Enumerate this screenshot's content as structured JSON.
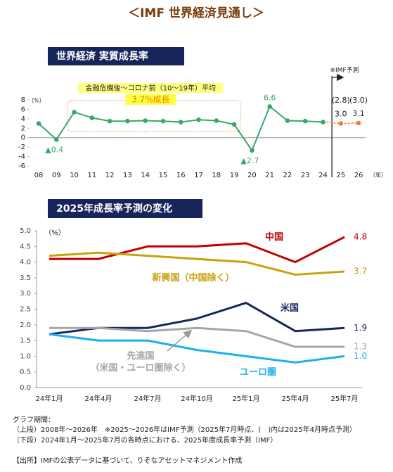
{
  "title": "＜IMF 世界経済見通し＞",
  "notes": [
    "グラフ期間：",
    "（上段）2008年～2026年　※2025～2026年はIMF予測（2025年7月時点、(　)内は2025年4月時点予測）",
    "（下段）2024年1月～2025年7月の各時点における、2025年度成長率予測（IMF）"
  ],
  "source": "【出所】IMFの公表データに基づいて、りそなアセットマネジメント作成",
  "chart_data": [
    {
      "type": "line",
      "header": "世界経済 実質成長率",
      "y_unit": "（%）",
      "x_unit": "（年）",
      "categories": [
        "08",
        "09",
        "10",
        "11",
        "12",
        "13",
        "14",
        "15",
        "16",
        "17",
        "18",
        "19",
        "20",
        "21",
        "22",
        "23",
        "24",
        "25",
        "26"
      ],
      "values": [
        3.0,
        -0.4,
        5.4,
        4.2,
        3.5,
        3.5,
        3.6,
        3.5,
        3.3,
        3.8,
        3.6,
        2.8,
        -2.7,
        6.6,
        3.6,
        3.5,
        3.3,
        3.0,
        3.1
      ],
      "value_labels": [
        null,
        "▲0.4",
        null,
        null,
        null,
        null,
        null,
        null,
        null,
        null,
        null,
        null,
        "▲2.7",
        "6.6",
        null,
        null,
        null,
        "3.0",
        "3.1"
      ],
      "color": "#3aa66b",
      "forecast": {
        "label": "※IMF予測",
        "from": "25",
        "color": "#f0803c",
        "prior_values": [
          2.8,
          3.0
        ],
        "prior_value_labels": [
          "(2.8)",
          "(3.0)"
        ]
      },
      "annotation": {
        "text": "金融危機後～コロナ前（10～19年）平均",
        "highlight": "3.7%成長",
        "from": "10",
        "to": "19"
      },
      "ylim": [
        -6,
        8
      ],
      "yticks": [
        8,
        6,
        4,
        2,
        0,
        -2,
        -4,
        -6
      ],
      "grid": false
    },
    {
      "type": "line",
      "header": "2025年成長率予測の変化",
      "y_unit": "（%）",
      "categories": [
        "24年1月",
        "24年4月",
        "24年7月",
        "24年10月",
        "25年1月",
        "25年4月",
        "25年7月"
      ],
      "series": [
        {
          "name": "中国",
          "color": "#c00000",
          "values": [
            4.1,
            4.1,
            4.5,
            4.5,
            4.6,
            4.0,
            4.8
          ],
          "value_labels": [
            null,
            null,
            null,
            null,
            null,
            null,
            "4.8"
          ]
        },
        {
          "name": "新興国（中国除く）",
          "color": "#c9a10a",
          "values": [
            4.2,
            4.3,
            4.2,
            4.1,
            4.0,
            3.6,
            3.7
          ],
          "value_labels": [
            null,
            null,
            null,
            null,
            null,
            null,
            "3.7"
          ]
        },
        {
          "name": "米国",
          "color": "#17265a",
          "values": [
            1.7,
            1.9,
            1.9,
            2.2,
            2.7,
            1.8,
            1.9
          ],
          "value_labels": [
            null,
            null,
            null,
            null,
            null,
            null,
            "1.9"
          ]
        },
        {
          "name": "先進国\n（米国・ユーロ圏除く）",
          "color": "#a6a6a6",
          "values": [
            1.9,
            1.9,
            1.8,
            1.9,
            1.8,
            1.3,
            1.3
          ],
          "value_labels": [
            null,
            null,
            null,
            null,
            null,
            null,
            "1.3"
          ]
        },
        {
          "name": "ユーロ圏",
          "color": "#1ab0ef",
          "values": [
            1.7,
            1.5,
            1.5,
            1.2,
            1.0,
            0.8,
            1.0
          ],
          "value_labels": [
            null,
            null,
            null,
            null,
            null,
            null,
            "1.0"
          ]
        }
      ],
      "ylim": [
        0,
        5
      ],
      "yticks": [
        {
          "value": 0,
          "label": "0.0"
        },
        0.5,
        {
          "value": 1,
          "label": "1.0"
        },
        1.5,
        {
          "value": 2,
          "label": "2.0"
        },
        2.5,
        {
          "value": 3,
          "label": "3.0"
        },
        3.5,
        {
          "value": 4,
          "label": "4.0"
        },
        4.5,
        {
          "value": 5,
          "label": "5.0"
        }
      ],
      "grid": false
    }
  ]
}
